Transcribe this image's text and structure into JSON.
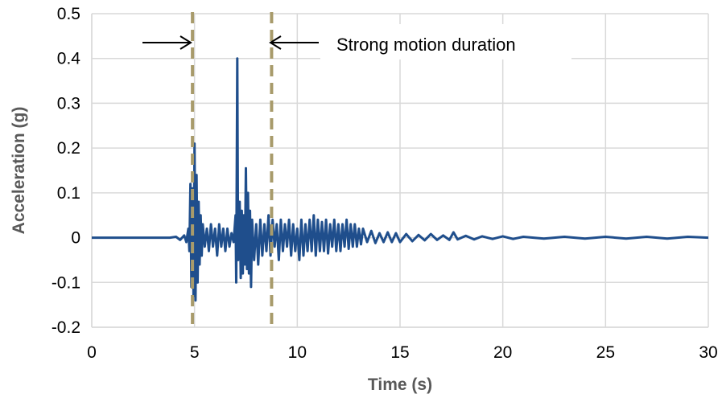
{
  "chart_data": {
    "type": "line",
    "xlabel": "Time (s)",
    "ylabel": "Acceleration (g)",
    "xlim": [
      0,
      30
    ],
    "ylim": [
      -0.2,
      0.5
    ],
    "x_ticks": [
      0,
      5,
      10,
      15,
      20,
      25,
      30
    ],
    "y_ticks": [
      -0.2,
      -0.1,
      0,
      0.1,
      0.2,
      0.3,
      0.4,
      0.5
    ],
    "x_tick_labels": [
      "0",
      "5",
      "10",
      "15",
      "20",
      "25",
      "30"
    ],
    "y_tick_labels": [
      "-0.2",
      "-0.1",
      "0",
      "0.1",
      "0.2",
      "0.3",
      "0.4",
      "0.5"
    ],
    "grid": true,
    "series": [
      {
        "color": "#1F4E8C",
        "points": [
          [
            0,
            0
          ],
          [
            3.8,
            0
          ],
          [
            4.1,
            0.002
          ],
          [
            4.3,
            -0.005
          ],
          [
            4.5,
            0.005
          ],
          [
            4.6,
            -0.01
          ],
          [
            4.7,
            0.02
          ],
          [
            4.75,
            -0.03
          ],
          [
            4.8,
            0.12
          ],
          [
            4.85,
            -0.11
          ],
          [
            4.9,
            0.11
          ],
          [
            4.95,
            -0.13
          ],
          [
            5.0,
            0.21
          ],
          [
            5.05,
            -0.14
          ],
          [
            5.1,
            0.14
          ],
          [
            5.15,
            -0.1
          ],
          [
            5.2,
            0.08
          ],
          [
            5.25,
            -0.06
          ],
          [
            5.3,
            0.05
          ],
          [
            5.35,
            -0.04
          ],
          [
            5.4,
            0.03
          ],
          [
            5.5,
            -0.02
          ],
          [
            5.6,
            0.02
          ],
          [
            5.7,
            -0.03
          ],
          [
            5.8,
            0.03
          ],
          [
            5.9,
            -0.02
          ],
          [
            6.0,
            0.02
          ],
          [
            6.1,
            -0.04
          ],
          [
            6.2,
            0.03
          ],
          [
            6.3,
            -0.02
          ],
          [
            6.4,
            0.02
          ],
          [
            6.5,
            -0.03
          ],
          [
            6.6,
            0.02
          ],
          [
            6.7,
            -0.02
          ],
          [
            6.8,
            0.01
          ],
          [
            6.9,
            -0.01
          ],
          [
            7.0,
            0.05
          ],
          [
            7.03,
            -0.1
          ],
          [
            7.08,
            0.4
          ],
          [
            7.12,
            -0.05
          ],
          [
            7.2,
            0.08
          ],
          [
            7.25,
            -0.09
          ],
          [
            7.3,
            0.06
          ],
          [
            7.35,
            -0.08
          ],
          [
            7.4,
            0.05
          ],
          [
            7.45,
            -0.06
          ],
          [
            7.5,
            0.155
          ],
          [
            7.55,
            -0.07
          ],
          [
            7.6,
            0.1
          ],
          [
            7.65,
            -0.08
          ],
          [
            7.7,
            0.06
          ],
          [
            7.75,
            -0.11
          ],
          [
            7.8,
            0.04
          ],
          [
            7.9,
            -0.05
          ],
          [
            8.0,
            0.03
          ],
          [
            8.1,
            -0.06
          ],
          [
            8.2,
            0.04
          ],
          [
            8.3,
            -0.04
          ],
          [
            8.4,
            0.03
          ],
          [
            8.5,
            -0.03
          ],
          [
            8.6,
            0.05
          ],
          [
            8.7,
            -0.04
          ],
          [
            8.8,
            0.04
          ],
          [
            8.9,
            -0.02
          ],
          [
            9.0,
            0.03
          ],
          [
            9.1,
            -0.05
          ],
          [
            9.2,
            0.04
          ],
          [
            9.3,
            -0.03
          ],
          [
            9.4,
            0.03
          ],
          [
            9.5,
            -0.02
          ],
          [
            9.6,
            0.04
          ],
          [
            9.7,
            -0.04
          ],
          [
            9.8,
            0.03
          ],
          [
            9.9,
            -0.03
          ],
          [
            10.0,
            0.02
          ],
          [
            10.1,
            -0.05
          ],
          [
            10.2,
            0.04
          ],
          [
            10.3,
            -0.04
          ],
          [
            10.4,
            0.03
          ],
          [
            10.5,
            -0.03
          ],
          [
            10.6,
            0.04
          ],
          [
            10.7,
            -0.03
          ],
          [
            10.8,
            0.05
          ],
          [
            10.9,
            -0.04
          ],
          [
            11.0,
            0.04
          ],
          [
            11.1,
            -0.03
          ],
          [
            11.2,
            0.035
          ],
          [
            11.3,
            -0.03
          ],
          [
            11.4,
            0.04
          ],
          [
            11.5,
            -0.035
          ],
          [
            11.6,
            0.03
          ],
          [
            11.7,
            -0.02
          ],
          [
            11.8,
            0.04
          ],
          [
            11.9,
            -0.03
          ],
          [
            12.0,
            0.03
          ],
          [
            12.1,
            -0.03
          ],
          [
            12.2,
            0.03
          ],
          [
            12.3,
            -0.02
          ],
          [
            12.4,
            0.04
          ],
          [
            12.5,
            -0.025
          ],
          [
            12.6,
            0.03
          ],
          [
            12.7,
            -0.02
          ],
          [
            12.8,
            0.03
          ],
          [
            12.9,
            -0.02
          ],
          [
            13.0,
            0.02
          ],
          [
            13.1,
            -0.015
          ],
          [
            13.2,
            0.02
          ],
          [
            13.4,
            -0.01
          ],
          [
            13.6,
            0.015
          ],
          [
            13.8,
            -0.012
          ],
          [
            14.0,
            0.01
          ],
          [
            14.2,
            -0.01
          ],
          [
            14.4,
            0.012
          ],
          [
            14.6,
            -0.01
          ],
          [
            14.8,
            0.01
          ],
          [
            15.0,
            -0.01
          ],
          [
            15.3,
            0.008
          ],
          [
            15.6,
            -0.008
          ],
          [
            15.9,
            0.006
          ],
          [
            16.2,
            -0.006
          ],
          [
            16.5,
            0.008
          ],
          [
            16.8,
            -0.005
          ],
          [
            17.1,
            0.005
          ],
          [
            17.4,
            -0.005
          ],
          [
            17.6,
            0.012
          ],
          [
            17.8,
            -0.004
          ],
          [
            18.2,
            0.004
          ],
          [
            18.6,
            -0.004
          ],
          [
            19.0,
            0.003
          ],
          [
            19.5,
            -0.003
          ],
          [
            20.0,
            0.003
          ],
          [
            20.5,
            -0.003
          ],
          [
            21.0,
            0.002
          ],
          [
            22.0,
            -0.002
          ],
          [
            23.0,
            0.002
          ],
          [
            24.0,
            -0.002
          ],
          [
            25.0,
            0.002
          ],
          [
            26.0,
            -0.002
          ],
          [
            27.0,
            0.002
          ],
          [
            28.0,
            -0.002
          ],
          [
            29.0,
            0.002
          ],
          [
            30.0,
            0
          ]
        ]
      }
    ],
    "markers": [
      4.9,
      8.75
    ],
    "annotation": "Strong motion duration"
  }
}
